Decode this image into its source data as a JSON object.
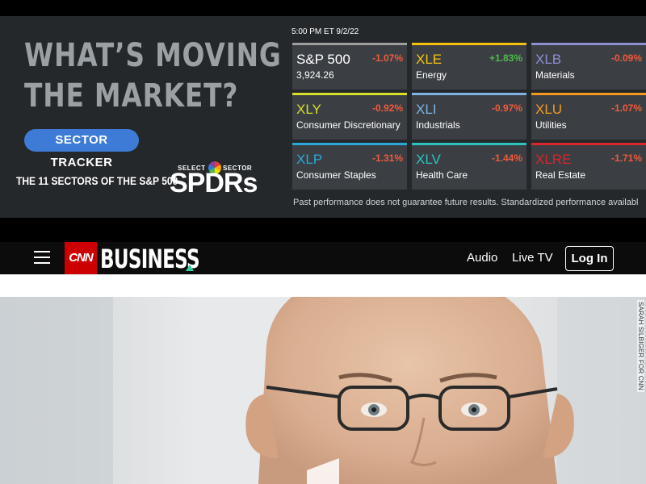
{
  "ad": {
    "headline_line1": "WHAT’S MOVING",
    "headline_line2": "THE MARKET?",
    "button_label": "SECTOR TRACKER",
    "tagline": "THE 11 SECTORS OF THE S&P 500",
    "brand_top_left": "SELECT",
    "brand_top_right": "SECTOR",
    "brand_word": "SPDRs",
    "timestamp": "5:00 PM ET 9/2/22",
    "tiles": [
      {
        "symbol": "S&P 500",
        "change": "-1.07%",
        "name": "3,924.26",
        "color": "#9e9e9e",
        "sym_color": "#ffffff",
        "dir": "neg"
      },
      {
        "symbol": "XLE",
        "change": "+1.83%",
        "name": "Energy",
        "color": "#f4c20d",
        "sym_color": "#f4c20d",
        "dir": "pos"
      },
      {
        "symbol": "XLB",
        "change": "-0.09%",
        "name": "Materials",
        "color": "#8d8fd1",
        "sym_color": "#8d8fd1",
        "dir": "neg"
      },
      {
        "symbol": "XLY",
        "change": "-0.92%",
        "name": "Consumer Discretionary",
        "color": "#d6de2b",
        "sym_color": "#d6de2b",
        "dir": "neg"
      },
      {
        "symbol": "XLI",
        "change": "-0.97%",
        "name": "Industrials",
        "color": "#7fb3e3",
        "sym_color": "#7fb3e3",
        "dir": "neg"
      },
      {
        "symbol": "XLU",
        "change": "-1.07%",
        "name": "Utilities",
        "color": "#f39a1e",
        "sym_color": "#f39a1e",
        "dir": "neg"
      },
      {
        "symbol": "XLP",
        "change": "-1.31%",
        "name": "Consumer Staples",
        "color": "#2aa8d8",
        "sym_color": "#2aa8d8",
        "dir": "neg"
      },
      {
        "symbol": "XLV",
        "change": "-1.44%",
        "name": "Health Care",
        "color": "#2cc3c1",
        "sym_color": "#2cc3c1",
        "dir": "neg"
      },
      {
        "symbol": "XLRE",
        "change": "-1.71%",
        "name": "Real Estate",
        "color": "#d8262b",
        "sym_color": "#d8262b",
        "dir": "neg"
      }
    ],
    "disclaimer": "Past performance does not guarantee future results. Standardized performance availabl"
  },
  "nav": {
    "logo": "CNN",
    "section": "BUSINESS",
    "audio": "Audio",
    "live_tv": "Live TV",
    "login": "Log In"
  },
  "hero": {
    "credit": "SARAH SILBIGER FOR CNN"
  },
  "colors": {
    "ad_bg": "#25282b",
    "button_blue": "#3e7bd6",
    "cnn_red": "#cc0000",
    "negative": "#f05a3a",
    "positive": "#4fbb4a"
  }
}
